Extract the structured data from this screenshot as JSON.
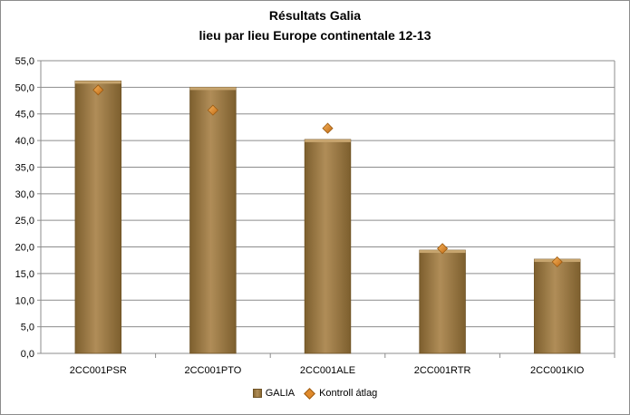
{
  "chart_data": {
    "type": "bar",
    "title": "Résultats Galia",
    "subtitle": "lieu par lieu Europe continentale 12-13",
    "categories": [
      "2CC001PSR",
      "2CC001PTO",
      "2CC001ALE",
      "2CC001RTR",
      "2CC001KIO"
    ],
    "series": [
      {
        "name": "GALIA",
        "type": "bar",
        "values": [
          51.2,
          50.0,
          40.2,
          19.4,
          17.7
        ]
      },
      {
        "name": "Kontroll átlag",
        "type": "marker",
        "values": [
          49.5,
          45.7,
          42.3,
          19.7,
          17.2
        ]
      }
    ],
    "ylim": [
      0,
      55
    ],
    "ytick_step": 5,
    "ytick_labels": [
      "0,0",
      "5,0",
      "10,0",
      "15,0",
      "20,0",
      "25,0",
      "30,0",
      "35,0",
      "40,0",
      "45,0",
      "50,0",
      "55,0"
    ],
    "grid": true,
    "legend_position": "bottom",
    "colors": {
      "bar": "#a2804a",
      "bar_dark": "#7d5f2e",
      "marker": "#e08a2c",
      "marker_edge": "#9c5a10",
      "grid": "#8c8c8c"
    }
  }
}
